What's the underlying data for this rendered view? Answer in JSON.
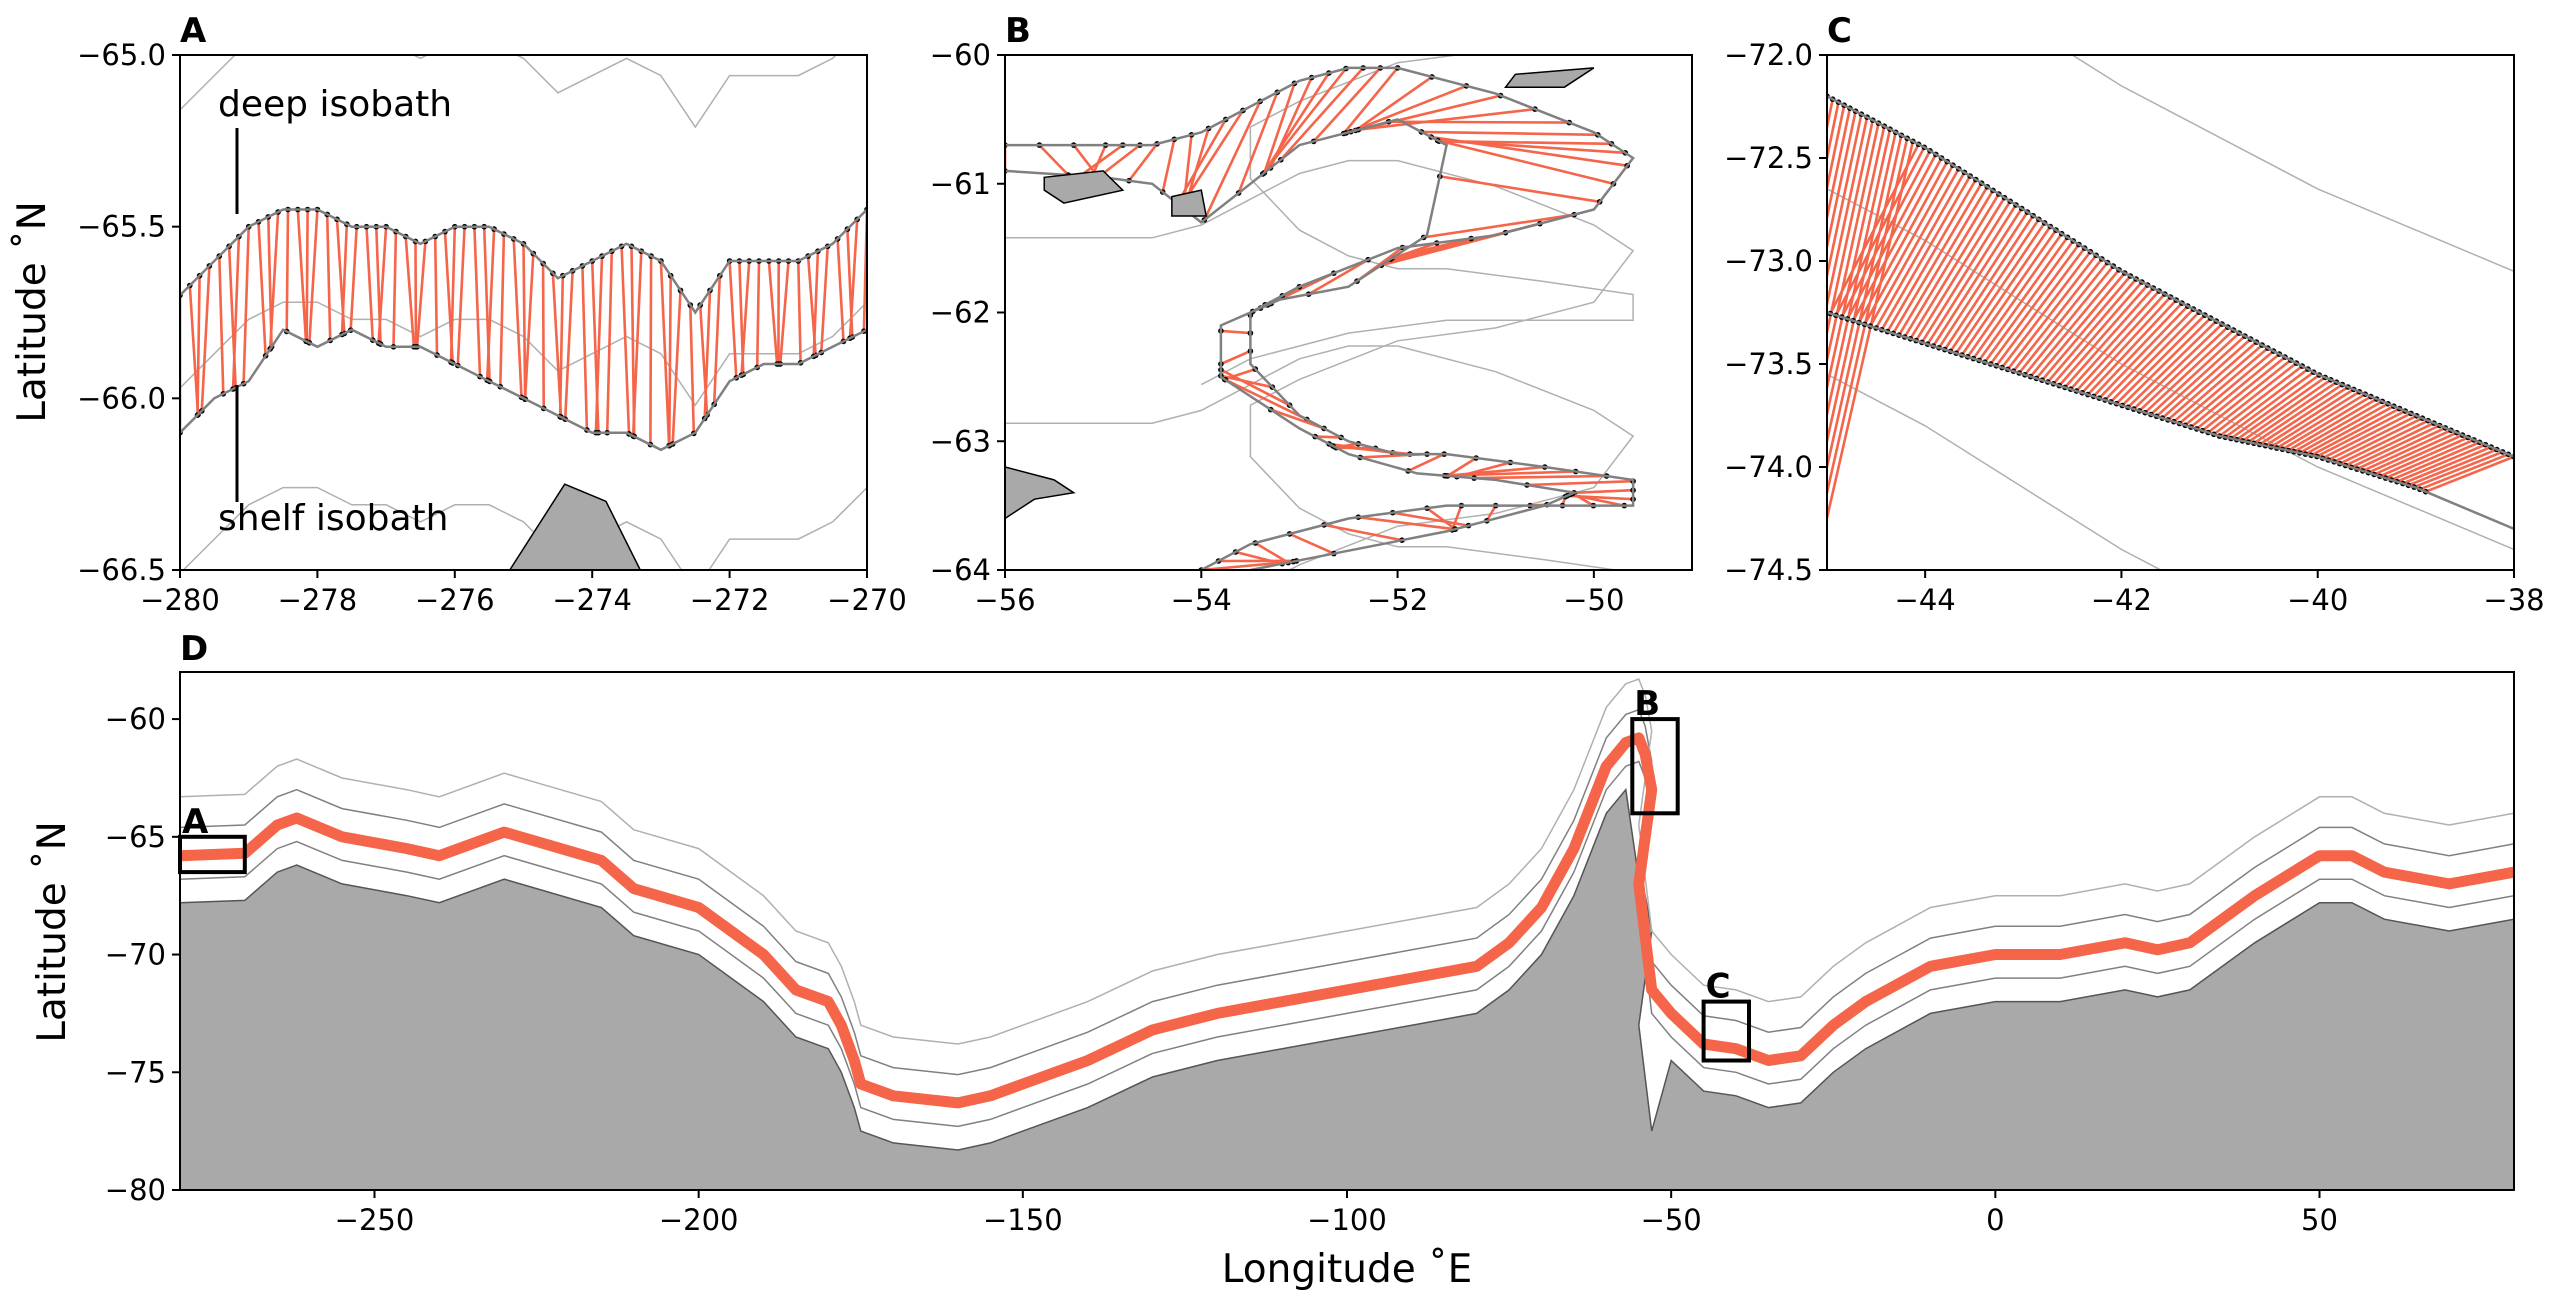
{
  "figure": {
    "panels": [
      {
        "id": "A",
        "label": "A",
        "xlim": [
          -280,
          -270
        ],
        "ylim": [
          -66.5,
          -65.0
        ],
        "xticks": [
          -280,
          -278,
          -276,
          -274,
          -272,
          -270
        ],
        "xtick_labels": [
          "−280",
          "−278",
          "−276",
          "−274",
          "−272",
          "−270"
        ],
        "yticks": [
          -65.0,
          -65.5,
          -66.0,
          -66.5
        ],
        "ytick_labels": [
          "−65.0",
          "−65.5",
          "−66.0",
          "−66.5"
        ],
        "ylabel": "Latitude ˚N",
        "xlabel": "",
        "annotations": [
          {
            "text": "deep isobath",
            "x": -279.3,
            "y": -65.2
          },
          {
            "text": "shelf isobath",
            "x": -279.3,
            "y": -66.4
          }
        ]
      },
      {
        "id": "B",
        "label": "B",
        "xlim": [
          -56,
          -49
        ],
        "ylim": [
          -64,
          -60
        ],
        "xticks": [
          -56,
          -54,
          -52,
          -50
        ],
        "xtick_labels": [
          "−56",
          "−54",
          "−52",
          "−50"
        ],
        "yticks": [
          -60,
          -61,
          -62,
          -63,
          -64
        ],
        "ytick_labels": [
          "−60",
          "−61",
          "−62",
          "−63",
          "−64"
        ],
        "ylabel": "",
        "xlabel": ""
      },
      {
        "id": "C",
        "label": "C",
        "xlim": [
          -45,
          -38
        ],
        "ylim": [
          -74.5,
          -72.0
        ],
        "xticks": [
          -44,
          -42,
          -40,
          -38
        ],
        "xtick_labels": [
          "−44",
          "−42",
          "−40",
          "−38"
        ],
        "yticks": [
          -72.0,
          -72.5,
          -73.0,
          -73.5,
          -74.0,
          -74.5
        ],
        "ytick_labels": [
          "−72.0",
          "−72.5",
          "−73.0",
          "−73.5",
          "−74.0",
          "−74.5"
        ],
        "ylabel": "",
        "xlabel": ""
      },
      {
        "id": "D",
        "label": "D",
        "xlim": [
          -280,
          80
        ],
        "ylim": [
          -80,
          -58
        ],
        "xticks": [
          -250,
          -200,
          -150,
          -100,
          -50,
          0,
          50
        ],
        "xtick_labels": [
          "−250",
          "−200",
          "−150",
          "−100",
          "−50",
          "0",
          "50"
        ],
        "yticks": [
          -60,
          -65,
          -70,
          -75,
          -80
        ],
        "ytick_labels": [
          "−60",
          "−65",
          "−70",
          "−75",
          "−80"
        ],
        "ylabel": "Latitude ˚N",
        "xlabel": "Longitude ˚E",
        "region_boxes": [
          {
            "label": "A",
            "lon": [
              -280,
              -270
            ],
            "lat": [
              -66.5,
              -65.0
            ]
          },
          {
            "label": "B",
            "lon": [
              -56,
              -49
            ],
            "lat": [
              -64,
              -60
            ]
          },
          {
            "label": "C",
            "lon": [
              -45,
              -38
            ],
            "lat": [
              -74.5,
              -72.0
            ]
          }
        ]
      }
    ],
    "colors": {
      "transect": "#f4654a",
      "land": "#a9a9a9",
      "isobath_light": "#b0b0b0",
      "isobath_mid": "#808080",
      "dots": "#000000"
    }
  },
  "chart_data": [
    {
      "type": "line",
      "panel": "A",
      "title": "",
      "xlabel": "",
      "ylabel": "Latitude ˚N",
      "xlim": [
        -280,
        -270
      ],
      "ylim": [
        -66.5,
        -65.0
      ],
      "series": [
        {
          "name": "deep isobath",
          "x": [
            -280,
            -279.5,
            -279,
            -278.5,
            -278,
            -277.5,
            -277,
            -276.5,
            -276,
            -275.5,
            -275,
            -274.5,
            -274,
            -273.5,
            -273,
            -272.5,
            -272,
            -271.5,
            -271,
            -270.5,
            -270
          ],
          "y": [
            -65.7,
            -65.6,
            -65.5,
            -65.45,
            -65.45,
            -65.5,
            -65.5,
            -65.55,
            -65.5,
            -65.5,
            -65.55,
            -65.65,
            -65.6,
            -65.55,
            -65.6,
            -65.75,
            -65.6,
            -65.6,
            -65.6,
            -65.55,
            -65.45
          ]
        },
        {
          "name": "shelf isobath",
          "x": [
            -280,
            -279.5,
            -279,
            -278.5,
            -278,
            -277.5,
            -277,
            -276.5,
            -276,
            -275.5,
            -275,
            -274.5,
            -274,
            -273.5,
            -273,
            -272.5,
            -272,
            -271.5,
            -271,
            -270.5,
            -270
          ],
          "y": [
            -66.1,
            -66.0,
            -65.95,
            -65.8,
            -65.85,
            -65.8,
            -65.85,
            -65.85,
            -65.9,
            -65.95,
            -66.0,
            -66.05,
            -66.1,
            -66.1,
            -66.15,
            -66.1,
            -65.95,
            -65.9,
            -65.9,
            -65.85,
            -65.8
          ]
        }
      ]
    },
    {
      "type": "line",
      "panel": "B",
      "title": "",
      "xlabel": "",
      "ylabel": "",
      "xlim": [
        -56,
        -49
      ],
      "ylim": [
        -64,
        -60
      ],
      "series": [
        {
          "name": "deep isobath",
          "x": [
            -56,
            -55,
            -54.5,
            -54,
            -53.5,
            -53,
            -52.5,
            -52,
            -51,
            -50,
            -49.6,
            -50,
            -51,
            -52,
            -53,
            -53.5,
            -53.5,
            -53,
            -52.5,
            -52,
            -51.5,
            -50.5,
            -49.6,
            -49.6,
            -50.5,
            -51.5,
            -52.5,
            -53.5,
            -54
          ],
          "y": [
            -60.7,
            -60.7,
            -60.7,
            -60.6,
            -60.4,
            -60.2,
            -60.1,
            -60.1,
            -60.3,
            -60.6,
            -60.8,
            -61.2,
            -61.4,
            -61.5,
            -61.8,
            -62.0,
            -62.4,
            -62.8,
            -63.0,
            -63.1,
            -63.1,
            -63.2,
            -63.3,
            -63.5,
            -63.5,
            -63.5,
            -63.6,
            -63.8,
            -64.0
          ]
        },
        {
          "name": "shelf isobath",
          "x": [
            -56,
            -55,
            -54.5,
            -54,
            -53.5,
            -53,
            -52.5,
            -52,
            -51.5,
            -51.7,
            -52.5,
            -53.2,
            -53.8,
            -53.8,
            -53.0,
            -52.5,
            -51.8,
            -51.0,
            -50.2,
            -50.5,
            -51.5,
            -52.5,
            -53.5
          ],
          "y": [
            -60.9,
            -60.95,
            -61.0,
            -61.3,
            -61.0,
            -60.7,
            -60.6,
            -60.5,
            -60.7,
            -61.4,
            -61.8,
            -61.9,
            -62.1,
            -62.5,
            -62.9,
            -63.1,
            -63.25,
            -63.3,
            -63.4,
            -63.5,
            -63.7,
            -63.85,
            -64.0
          ]
        }
      ]
    },
    {
      "type": "line",
      "panel": "C",
      "title": "",
      "xlabel": "",
      "ylabel": "",
      "xlim": [
        -45,
        -38
      ],
      "ylim": [
        -74.5,
        -72.0
      ],
      "series": [
        {
          "name": "deep isobath",
          "x": [
            -45,
            -44,
            -43,
            -42,
            -41,
            -40,
            -39,
            -38
          ],
          "y": [
            -72.2,
            -72.45,
            -72.75,
            -73.05,
            -73.3,
            -73.55,
            -73.75,
            -73.95
          ]
        },
        {
          "name": "shelf isobath",
          "x": [
            -45,
            -44,
            -43,
            -42,
            -41,
            -40,
            -39,
            -38
          ],
          "y": [
            -73.25,
            -73.4,
            -73.55,
            -73.7,
            -73.85,
            -73.95,
            -74.1,
            -74.3
          ]
        }
      ]
    },
    {
      "type": "line",
      "panel": "D",
      "title": "",
      "xlabel": "Longitude ˚E",
      "ylabel": "Latitude ˚N",
      "xlim": [
        -280,
        80
      ],
      "ylim": [
        -80,
        -58
      ],
      "series": [
        {
          "name": "transect path",
          "x": [
            -280,
            -270,
            -265,
            -262,
            -255,
            -245,
            -240,
            -230,
            -225,
            -215,
            -210,
            -200,
            -190,
            -185,
            -180,
            -178,
            -176,
            -175,
            -170,
            -160,
            -155,
            -150,
            -140,
            -130,
            -120,
            -110,
            -100,
            -90,
            -80,
            -75,
            -70,
            -65,
            -60,
            -57,
            -55,
            -54,
            -53,
            -55,
            -53,
            -50,
            -45,
            -40,
            -35,
            -30,
            -25,
            -20,
            -10,
            0,
            10,
            20,
            25,
            30,
            40,
            50,
            55,
            60,
            70,
            80
          ],
          "y": [
            -65.8,
            -65.7,
            -64.5,
            -64.2,
            -65.0,
            -65.5,
            -65.8,
            -64.8,
            -65.2,
            -66.0,
            -67.2,
            -68.0,
            -70.0,
            -71.5,
            -72.0,
            -73.0,
            -74.5,
            -75.5,
            -76.0,
            -76.3,
            -76.0,
            -75.5,
            -74.5,
            -73.2,
            -72.5,
            -72.0,
            -71.5,
            -71.0,
            -70.5,
            -69.5,
            -68.0,
            -65.5,
            -62.0,
            -61.0,
            -60.8,
            -61.5,
            -63.0,
            -67.0,
            -71.5,
            -72.5,
            -73.8,
            -74.0,
            -74.5,
            -74.3,
            -73.0,
            -72.0,
            -70.5,
            -70.0,
            -70.0,
            -69.5,
            -69.8,
            -69.5,
            -67.5,
            -65.8,
            -65.8,
            -66.5,
            -67.0,
            -66.5
          ]
        }
      ]
    }
  ]
}
